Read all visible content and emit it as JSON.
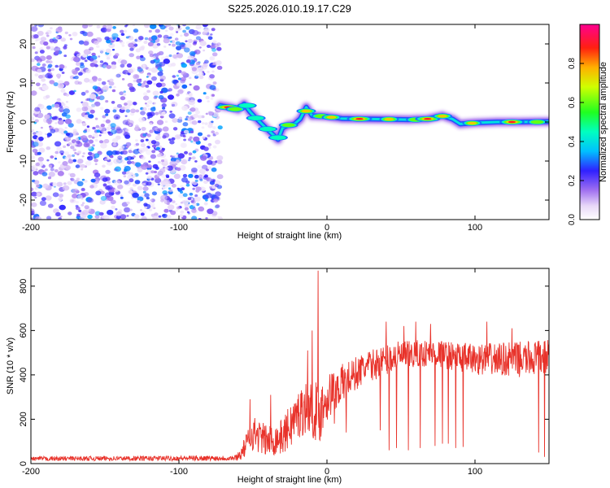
{
  "title": "S225.2026.010.19.17.C29",
  "colors": {
    "line": "#e8322a",
    "axis": "#000000",
    "noise": "#8a2be2"
  },
  "chart_data": [
    {
      "type": "heatmap",
      "title": "S225.2026.010.19.17.C29",
      "xlabel": "Height of straight line (km)",
      "ylabel": "Frequency (Hz)",
      "xlim": [
        -200,
        150
      ],
      "ylim": [
        -25,
        25
      ],
      "xticks": [
        -200,
        -100,
        0,
        100
      ],
      "yticks": [
        -20,
        -10,
        0,
        10,
        20
      ],
      "noise_region": [
        -200,
        -72
      ],
      "ridge": [
        {
          "x": -72,
          "y": 4.2
        },
        {
          "x": -66,
          "y": 3.8
        },
        {
          "x": -60,
          "y": 3.2
        },
        {
          "x": -56,
          "y": 4.6
        },
        {
          "x": -52,
          "y": 2.6
        },
        {
          "x": -48,
          "y": 1.0
        },
        {
          "x": -44,
          "y": -0.5
        },
        {
          "x": -40,
          "y": -2.0
        },
        {
          "x": -36,
          "y": -3.4
        },
        {
          "x": -33,
          "y": -4.5
        },
        {
          "x": -30,
          "y": -1.5
        },
        {
          "x": -26,
          "y": -0.8
        },
        {
          "x": -22,
          "y": -0.5
        },
        {
          "x": -18,
          "y": 0.8
        },
        {
          "x": -14,
          "y": 3.8
        },
        {
          "x": -10,
          "y": 1.6
        },
        {
          "x": -4,
          "y": 1.5
        },
        {
          "x": 0,
          "y": 1.4
        },
        {
          "x": 10,
          "y": 0.9
        },
        {
          "x": 25,
          "y": 0.8
        },
        {
          "x": 40,
          "y": 0.7
        },
        {
          "x": 55,
          "y": 0.6
        },
        {
          "x": 68,
          "y": 0.8
        },
        {
          "x": 78,
          "y": 1.6
        },
        {
          "x": 85,
          "y": 0.7
        },
        {
          "x": 90,
          "y": -0.5
        },
        {
          "x": 100,
          "y": -0.2
        },
        {
          "x": 115,
          "y": 0.0
        },
        {
          "x": 130,
          "y": 0.0
        },
        {
          "x": 150,
          "y": 0.1
        }
      ],
      "peaks": [
        {
          "x": -67,
          "y": 3.8,
          "v": 0.95
        },
        {
          "x": -62,
          "y": 3.3,
          "v": 0.6
        },
        {
          "x": -54,
          "y": 4.2,
          "v": 0.55
        },
        {
          "x": -48,
          "y": 1.0,
          "v": 0.5
        },
        {
          "x": -40,
          "y": -1.8,
          "v": 0.55
        },
        {
          "x": -33,
          "y": -4.0,
          "v": 0.5
        },
        {
          "x": -26,
          "y": -0.8,
          "v": 0.6
        },
        {
          "x": -14,
          "y": 2.8,
          "v": 0.75
        },
        {
          "x": -4,
          "y": 1.5,
          "v": 0.7
        },
        {
          "x": 3,
          "y": 1.2,
          "v": 0.75
        },
        {
          "x": 22,
          "y": 0.8,
          "v": 1.0
        },
        {
          "x": 42,
          "y": 0.7,
          "v": 0.75
        },
        {
          "x": 60,
          "y": 0.6,
          "v": 0.7
        },
        {
          "x": 68,
          "y": 0.8,
          "v": 0.9
        },
        {
          "x": 78,
          "y": 1.5,
          "v": 0.85
        },
        {
          "x": 98,
          "y": -0.3,
          "v": 0.8
        },
        {
          "x": 125,
          "y": 0.0,
          "v": 1.0
        },
        {
          "x": 142,
          "y": 0.0,
          "v": 0.7
        }
      ],
      "colorbar": {
        "label": "Normalized spectral amplitude",
        "ticks": [
          "0.0",
          "0.2",
          "0.4",
          "0.6",
          "0.8"
        ],
        "range": [
          0,
          1
        ]
      }
    },
    {
      "type": "line",
      "xlabel": "Height of straight line (km)",
      "ylabel": "SNR (10 * v/v)",
      "xlim": [
        -200,
        150
      ],
      "ylim": [
        0,
        880
      ],
      "xticks": [
        -200,
        -100,
        0,
        100
      ],
      "yticks": [
        0,
        200,
        400,
        600,
        800
      ],
      "series": [
        {
          "name": "SNR",
          "envelope": [
            {
              "x": -200,
              "v": 22,
              "amp": 10
            },
            {
              "x": -62,
              "v": 25,
              "amp": 12
            },
            {
              "x": -58,
              "v": 45,
              "amp": 30
            },
            {
              "x": -50,
              "v": 140,
              "amp": 80
            },
            {
              "x": -40,
              "v": 100,
              "amp": 70
            },
            {
              "x": -30,
              "v": 120,
              "amp": 80
            },
            {
              "x": -22,
              "v": 200,
              "amp": 110
            },
            {
              "x": -14,
              "v": 260,
              "amp": 120
            },
            {
              "x": -5,
              "v": 230,
              "amp": 140
            },
            {
              "x": 0,
              "v": 300,
              "amp": 110
            },
            {
              "x": 10,
              "v": 360,
              "amp": 90
            },
            {
              "x": 25,
              "v": 430,
              "amp": 70
            },
            {
              "x": 45,
              "v": 480,
              "amp": 70
            },
            {
              "x": 70,
              "v": 500,
              "amp": 60
            },
            {
              "x": 100,
              "v": 470,
              "amp": 70
            },
            {
              "x": 130,
              "v": 470,
              "amp": 80
            },
            {
              "x": 150,
              "v": 480,
              "amp": 80
            }
          ],
          "spikes": [
            {
              "x": -6,
              "v": 870
            },
            {
              "x": -10,
              "v": 600
            },
            {
              "x": -13,
              "v": 510
            },
            {
              "x": 40,
              "v": 640
            },
            {
              "x": 52,
              "v": 620
            },
            {
              "x": 60,
              "v": 640
            },
            {
              "x": 70,
              "v": 630
            },
            {
              "x": 78,
              "v": 650
            },
            {
              "x": 108,
              "v": 640
            },
            {
              "x": 125,
              "v": 610
            },
            {
              "x": -52,
              "v": 290
            },
            {
              "x": -38,
              "v": 310
            }
          ],
          "dips": [
            {
              "x": 5,
              "v": 180
            },
            {
              "x": 13,
              "v": 140
            },
            {
              "x": 36,
              "v": 150
            },
            {
              "x": 42,
              "v": 60
            },
            {
              "x": 47,
              "v": 70
            },
            {
              "x": 55,
              "v": 60
            },
            {
              "x": 63,
              "v": 70
            },
            {
              "x": 73,
              "v": 80
            },
            {
              "x": 78,
              "v": 90
            },
            {
              "x": 82,
              "v": 90
            },
            {
              "x": 87,
              "v": 70
            },
            {
              "x": 92,
              "v": 75
            },
            {
              "x": 143,
              "v": 50
            },
            {
              "x": 147,
              "v": 30
            }
          ]
        }
      ]
    }
  ]
}
